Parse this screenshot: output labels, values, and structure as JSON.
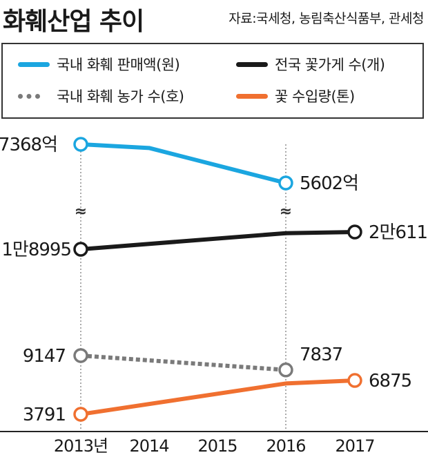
{
  "header": {
    "title": "화훼산업 추이",
    "source": "자료:국세청, 농림축산식품부, 관세청"
  },
  "chart_data": {
    "type": "line",
    "title": "화훼산업 추이",
    "x": [
      "2013년",
      "2014",
      "2015",
      "2016",
      "2017"
    ],
    "series": [
      {
        "name": "국내 화훼 판매액(원)",
        "color": "#1ba6e0",
        "style": "solid",
        "panel": "top",
        "values": [
          7368,
          7200,
          null,
          5602,
          null
        ],
        "labels": {
          "0": "7368억",
          "3": "5602억"
        },
        "markers": [
          0,
          3
        ]
      },
      {
        "name": "전국 꽃가게 수(개)",
        "color": "#1a1a1a",
        "style": "solid",
        "panel": "middle",
        "values": [
          18995,
          null,
          null,
          20500,
          20611
        ],
        "labels": {
          "0": "1만8995",
          "4": "2만611"
        },
        "markers": [
          0,
          4
        ]
      },
      {
        "name": "국내 화훼 농가 수(호)",
        "color": "#7a7a7a",
        "style": "dotted",
        "panel": "bottom",
        "values": [
          9147,
          null,
          null,
          7837,
          null
        ],
        "labels": {
          "0": "9147",
          "3": "7837"
        },
        "markers": [
          0,
          3
        ]
      },
      {
        "name": "꽃 수입량(톤)",
        "color": "#f07030",
        "style": "solid",
        "panel": "bottom",
        "values": [
          3791,
          null,
          null,
          6600,
          6875
        ],
        "labels": {
          "0": "3791",
          "4": "6875"
        },
        "markers": [
          0,
          4
        ]
      }
    ],
    "panels": {
      "top": {
        "domain": [
          5602,
          7368
        ]
      },
      "middle": {
        "domain": [
          18995,
          20611
        ]
      },
      "bottom": {
        "domain": [
          3791,
          9147
        ]
      }
    },
    "axis_breaks": [
      "≈",
      "≈"
    ],
    "grid": false,
    "legend_position": "top"
  }
}
